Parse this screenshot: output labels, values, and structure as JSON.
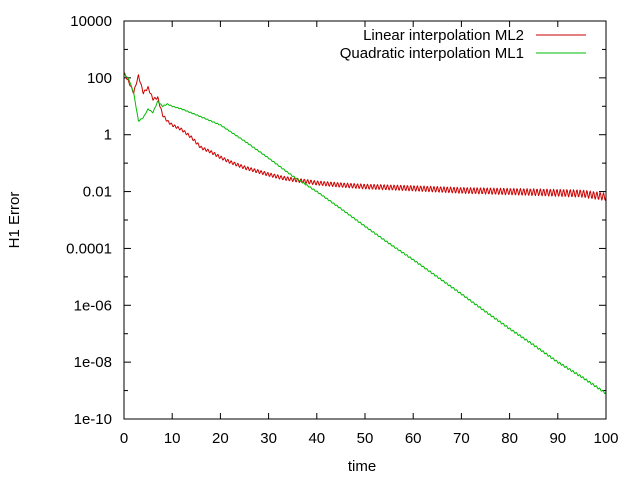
{
  "chart_data": {
    "type": "line",
    "title": "",
    "xlabel": "time",
    "ylabel": "H1 Error",
    "xlim": [
      0,
      100
    ],
    "ylim": [
      1e-10,
      10000
    ],
    "yscale": "log",
    "grid": false,
    "legend_position": "top-right",
    "x_ticks": [
      0,
      10,
      20,
      30,
      40,
      50,
      60,
      70,
      80,
      90,
      100
    ],
    "x_tick_labels": [
      "0",
      "10",
      "20",
      "30",
      "40",
      "50",
      "60",
      "70",
      "80",
      "90",
      "100"
    ],
    "y_ticks": [
      1e-10,
      1e-08,
      1e-06,
      0.0001,
      0.01,
      1,
      100,
      10000
    ],
    "y_tick_labels": [
      "1e-10",
      "1e-08",
      "1e-06",
      "0.0001",
      "0.01",
      "1",
      "100",
      "10000"
    ],
    "series": [
      {
        "name": "Linear interpolation ML2",
        "color": "#cc0000",
        "x": [
          0,
          1,
          2,
          3,
          4,
          5,
          6,
          7,
          8,
          9,
          10,
          12,
          14,
          16,
          18,
          20,
          22,
          25,
          28,
          30,
          33,
          36,
          40,
          45,
          50,
          55,
          60,
          65,
          70,
          75,
          80,
          85,
          90,
          95,
          100
        ],
        "y": [
          150,
          70,
          30,
          120,
          30,
          45,
          18,
          20,
          5,
          3,
          2.2,
          1.5,
          0.8,
          0.35,
          0.25,
          0.16,
          0.11,
          0.07,
          0.05,
          0.04,
          0.03,
          0.025,
          0.02,
          0.017,
          0.015,
          0.014,
          0.013,
          0.012,
          0.011,
          0.0105,
          0.01,
          0.0095,
          0.009,
          0.0085,
          0.0065
        ]
      },
      {
        "name": "Quadratic interpolation ML1",
        "color": "#00bb00",
        "x": [
          0,
          1,
          2,
          3,
          4,
          5,
          6,
          7,
          8,
          9,
          10,
          12,
          15,
          20,
          25,
          30,
          35,
          40,
          45,
          50,
          55,
          60,
          65,
          70,
          75,
          80,
          85,
          90,
          95,
          100
        ],
        "y": [
          140,
          90,
          30,
          3,
          4,
          8,
          6,
          15,
          10,
          12,
          10,
          8,
          5,
          2.2,
          0.6,
          0.15,
          0.035,
          0.01,
          0.0025,
          0.0006,
          0.00015,
          4e-05,
          1e-05,
          2.5e-06,
          6e-07,
          1.5e-07,
          4e-08,
          1e-08,
          3e-09,
          8e-10
        ]
      }
    ]
  }
}
